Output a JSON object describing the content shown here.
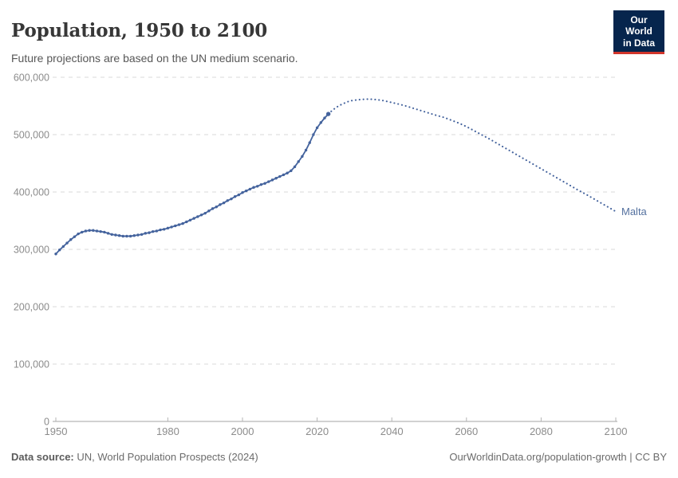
{
  "header": {
    "title": "Population, 1950 to 2100",
    "subtitle": "Future projections are based on the UN medium scenario.",
    "logo_line1": "Our World",
    "logo_line2": "in Data"
  },
  "footer": {
    "source_label": "Data source:",
    "source_text": " UN, World Population Prospects (2024)",
    "right_text": "OurWorldinData.org/population-growth | CC BY"
  },
  "colors": {
    "line": "#44639d",
    "entity_label": "#54719f",
    "grid": "#dadada",
    "axis_line": "#a3a3a3",
    "tick": "#b5b5b5",
    "axis_text": "#8c8c8c",
    "logo_bg": "#06254d",
    "logo_red": "#d1352b"
  },
  "chart_data": {
    "type": "line",
    "title": "Population, 1950 to 2100",
    "subtitle": "Future projections are based on the UN medium scenario.",
    "entity_label": "Malta",
    "xlabel": "",
    "ylabel": "",
    "xlim": [
      1950,
      2100
    ],
    "ylim": [
      0,
      600000
    ],
    "grid": "horizontal dashed",
    "legend_position": "end-of-line label",
    "x_ticks": [
      1950,
      1980,
      2000,
      2020,
      2040,
      2060,
      2080,
      2100
    ],
    "x_tick_labels": [
      "1950",
      "1980",
      "2000",
      "2020",
      "2040",
      "2060",
      "2080",
      "2100"
    ],
    "y_ticks": [
      0,
      100000,
      200000,
      300000,
      400000,
      500000,
      600000
    ],
    "y_tick_labels": [
      "0",
      "100,000",
      "200,000",
      "300,000",
      "400,000",
      "500,000",
      "600,000"
    ],
    "series": [
      {
        "name": "Malta — observed",
        "style": "solid-with-markers",
        "points": [
          [
            1950,
            292000
          ],
          [
            1951,
            299000
          ],
          [
            1952,
            305000
          ],
          [
            1953,
            311000
          ],
          [
            1954,
            317000
          ],
          [
            1955,
            322000
          ],
          [
            1956,
            327000
          ],
          [
            1957,
            330000
          ],
          [
            1958,
            332000
          ],
          [
            1959,
            333000
          ],
          [
            1960,
            333000
          ],
          [
            1961,
            332000
          ],
          [
            1962,
            331000
          ],
          [
            1963,
            330000
          ],
          [
            1964,
            328000
          ],
          [
            1965,
            326000
          ],
          [
            1966,
            325000
          ],
          [
            1967,
            324000
          ],
          [
            1968,
            323000
          ],
          [
            1969,
            323000
          ],
          [
            1970,
            323000
          ],
          [
            1971,
            324000
          ],
          [
            1972,
            325000
          ],
          [
            1973,
            326000
          ],
          [
            1974,
            328000
          ],
          [
            1975,
            329000
          ],
          [
            1976,
            331000
          ],
          [
            1977,
            332000
          ],
          [
            1978,
            334000
          ],
          [
            1979,
            335000
          ],
          [
            1980,
            337000
          ],
          [
            1981,
            339000
          ],
          [
            1982,
            341000
          ],
          [
            1983,
            343000
          ],
          [
            1984,
            345000
          ],
          [
            1985,
            348000
          ],
          [
            1986,
            351000
          ],
          [
            1987,
            354000
          ],
          [
            1988,
            357000
          ],
          [
            1989,
            360000
          ],
          [
            1990,
            363000
          ],
          [
            1991,
            367000
          ],
          [
            1992,
            371000
          ],
          [
            1993,
            374000
          ],
          [
            1994,
            378000
          ],
          [
            1995,
            381000
          ],
          [
            1996,
            385000
          ],
          [
            1997,
            388000
          ],
          [
            1998,
            392000
          ],
          [
            1999,
            395000
          ],
          [
            2000,
            399000
          ],
          [
            2001,
            402000
          ],
          [
            2002,
            405000
          ],
          [
            2003,
            408000
          ],
          [
            2004,
            410000
          ],
          [
            2005,
            413000
          ],
          [
            2006,
            415000
          ],
          [
            2007,
            418000
          ],
          [
            2008,
            421000
          ],
          [
            2009,
            424000
          ],
          [
            2010,
            427000
          ],
          [
            2011,
            430000
          ],
          [
            2012,
            433000
          ],
          [
            2013,
            437000
          ],
          [
            2014,
            444000
          ],
          [
            2015,
            453000
          ],
          [
            2016,
            462000
          ],
          [
            2017,
            473000
          ],
          [
            2018,
            486000
          ],
          [
            2019,
            500000
          ],
          [
            2020,
            512000
          ],
          [
            2021,
            521000
          ],
          [
            2022,
            529000
          ],
          [
            2023,
            536000
          ]
        ]
      },
      {
        "name": "Malta — UN medium projection",
        "style": "dotted",
        "points": [
          [
            2023,
            536000
          ],
          [
            2024,
            542000
          ],
          [
            2025,
            547000
          ],
          [
            2026,
            551000
          ],
          [
            2027,
            554000
          ],
          [
            2028,
            557000
          ],
          [
            2029,
            559000
          ],
          [
            2030,
            560000
          ],
          [
            2032,
            561500
          ],
          [
            2034,
            562000
          ],
          [
            2036,
            561000
          ],
          [
            2038,
            559000
          ],
          [
            2040,
            556000
          ],
          [
            2042,
            553000
          ],
          [
            2044,
            549500
          ],
          [
            2046,
            545500
          ],
          [
            2048,
            541500
          ],
          [
            2050,
            537500
          ],
          [
            2052,
            533500
          ],
          [
            2054,
            530000
          ],
          [
            2056,
            525000
          ],
          [
            2058,
            520000
          ],
          [
            2060,
            514000
          ],
          [
            2062,
            507000
          ],
          [
            2064,
            500000
          ],
          [
            2066,
            493000
          ],
          [
            2068,
            485500
          ],
          [
            2070,
            478000
          ],
          [
            2072,
            470500
          ],
          [
            2074,
            463000
          ],
          [
            2076,
            455500
          ],
          [
            2078,
            448000
          ],
          [
            2080,
            440500
          ],
          [
            2082,
            433000
          ],
          [
            2084,
            425500
          ],
          [
            2086,
            418000
          ],
          [
            2088,
            410500
          ],
          [
            2090,
            403000
          ],
          [
            2092,
            396000
          ],
          [
            2094,
            388500
          ],
          [
            2096,
            381000
          ],
          [
            2098,
            373500
          ],
          [
            2100,
            366000
          ]
        ]
      }
    ]
  }
}
